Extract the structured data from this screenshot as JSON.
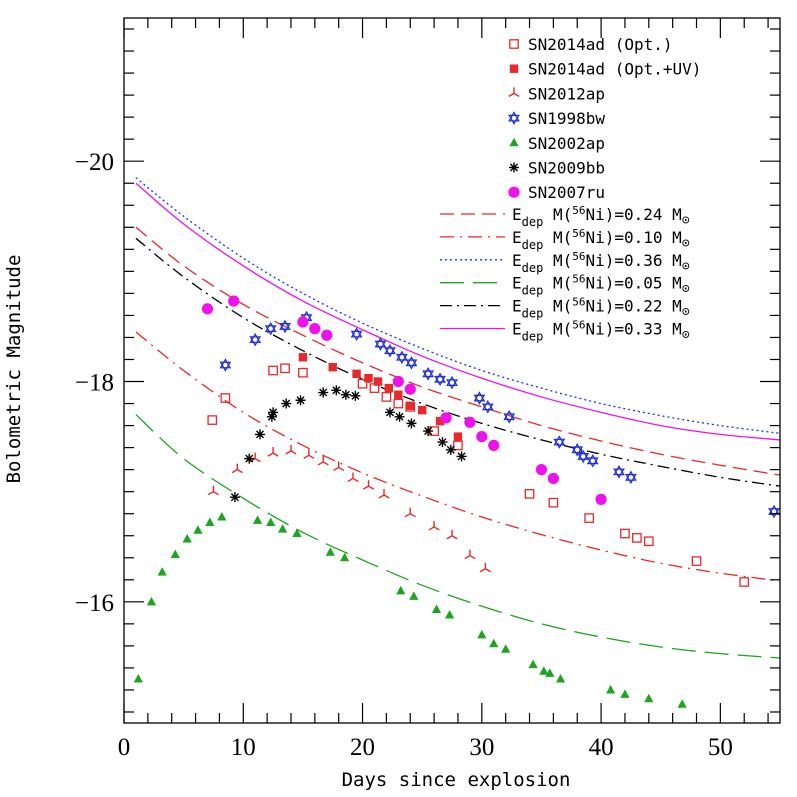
{
  "chart_data": {
    "type": "scatter",
    "xlabel": "Days since explosion",
    "ylabel": "Bolometric Magnitude",
    "xlim": [
      0,
      55
    ],
    "ylim": [
      -14.9,
      -21.3
    ],
    "x_ticks": [
      0,
      10,
      20,
      30,
      40,
      50
    ],
    "y_ticks": [
      -16,
      -18,
      -20
    ],
    "y_tick_labels": [
      "−16",
      "−18",
      "−20"
    ],
    "grid": false,
    "legend_position": "top-right",
    "series": [
      {
        "name": "SN2014ad (Opt.)",
        "marker": "open-square",
        "color": "#e8282b",
        "x": [
          7.4,
          8.5,
          12.5,
          13.5,
          15.0,
          20.0,
          21.0,
          22.0,
          23.0,
          24.0,
          26.0,
          28.0,
          34.0,
          36.0,
          39.0,
          42.0,
          43.0,
          44.0,
          48.0,
          52.0
        ],
        "y": [
          -17.65,
          -17.85,
          -18.1,
          -18.12,
          -18.08,
          -17.98,
          -17.94,
          -17.86,
          -17.8,
          -17.77,
          -17.55,
          -17.42,
          -16.98,
          -16.9,
          -16.76,
          -16.62,
          -16.58,
          -16.55,
          -16.37,
          -16.18
        ]
      },
      {
        "name": "SN2014ad (Opt.+UV)",
        "marker": "filled-square",
        "color": "#e8282b",
        "x": [
          15.0,
          17.5,
          19.5,
          20.5,
          21.3,
          22.2,
          23.0,
          24.0,
          25.0,
          26.5,
          28.0
        ],
        "y": [
          -18.22,
          -18.13,
          -18.07,
          -18.03,
          -18.0,
          -17.94,
          -17.88,
          -17.78,
          -17.74,
          -17.64,
          -17.5
        ]
      },
      {
        "name": "SN2012ap",
        "marker": "tripod",
        "color": "#e8282b",
        "x": [
          7.5,
          9.5,
          11.0,
          12.5,
          14.0,
          15.5,
          16.7,
          18.0,
          19.2,
          20.5,
          21.8,
          24.0,
          26.0,
          27.5,
          29.0,
          30.3
        ],
        "y": [
          -17.0,
          -17.2,
          -17.3,
          -17.35,
          -17.37,
          -17.33,
          -17.27,
          -17.22,
          -17.12,
          -17.05,
          -16.97,
          -16.8,
          -16.68,
          -16.6,
          -16.42,
          -16.3
        ]
      },
      {
        "name": "SN1998bw",
        "marker": "star-of-david",
        "color": "#1f31d8",
        "x": [
          8.5,
          11.0,
          12.3,
          13.5,
          15.3,
          19.5,
          21.5,
          22.3,
          23.3,
          24.1,
          25.5,
          26.5,
          27.5,
          29.8,
          30.5,
          32.3,
          36.5,
          38.0,
          38.5,
          39.3,
          41.5,
          42.5,
          54.5
        ],
        "y": [
          -18.15,
          -18.38,
          -18.48,
          -18.5,
          -18.58,
          -18.43,
          -18.34,
          -18.28,
          -18.22,
          -18.17,
          -18.07,
          -18.02,
          -17.99,
          -17.85,
          -17.77,
          -17.68,
          -17.45,
          -17.38,
          -17.32,
          -17.28,
          -17.18,
          -17.13,
          -16.82
        ]
      },
      {
        "name": "SN2002ap",
        "marker": "filled-triangle",
        "color": "#1aa61e",
        "x": [
          1.2,
          2.3,
          3.2,
          4.3,
          5.3,
          6.2,
          7.2,
          8.2,
          11.2,
          12.3,
          13.3,
          14.5,
          17.3,
          18.5,
          23.2,
          24.3,
          26.2,
          27.3,
          30.0,
          31.0,
          32.0,
          34.3,
          35.2,
          35.7,
          36.6,
          40.8,
          42.0,
          44.0,
          46.8
        ],
        "y": [
          -15.3,
          -16.0,
          -16.27,
          -16.43,
          -16.57,
          -16.65,
          -16.72,
          -16.77,
          -16.74,
          -16.72,
          -16.66,
          -16.62,
          -16.45,
          -16.4,
          -16.1,
          -16.05,
          -15.93,
          -15.88,
          -15.7,
          -15.62,
          -15.57,
          -15.43,
          -15.37,
          -15.35,
          -15.3,
          -15.2,
          -15.16,
          -15.12,
          -15.07
        ]
      },
      {
        "name": "SN2009bb",
        "marker": "asterisk",
        "color": "#000000",
        "x": [
          9.3,
          10.5,
          11.4,
          12.4,
          12.5,
          13.6,
          14.8,
          16.7,
          17.8,
          18.6,
          19.4,
          22.3,
          23.1,
          24.1,
          25.5,
          26.7,
          27.4,
          28.3
        ],
        "y": [
          -16.95,
          -17.3,
          -17.52,
          -17.68,
          -17.72,
          -17.8,
          -17.83,
          -17.9,
          -17.92,
          -17.88,
          -17.87,
          -17.72,
          -17.68,
          -17.62,
          -17.55,
          -17.45,
          -17.38,
          -17.32
        ]
      },
      {
        "name": "SN2007ru",
        "marker": "filled-circle",
        "color": "#ee11ee",
        "x": [
          7.0,
          9.2,
          15.0,
          16.0,
          17.0,
          23.0,
          24.0,
          27.0,
          29.0,
          30.0,
          31.0,
          35.0,
          36.0,
          40.0
        ],
        "y": [
          -18.66,
          -18.73,
          -18.54,
          -18.48,
          -18.42,
          -18.0,
          -17.93,
          -17.67,
          -17.63,
          -17.5,
          -17.42,
          -17.2,
          -17.12,
          -16.93
        ]
      }
    ],
    "models": [
      {
        "name": "M(56Ni)=0.24",
        "label_parts": [
          "E",
          "dep",
          "M(",
          "56",
          "Ni)=0.24 M",
          "⊙"
        ],
        "style": "dashed",
        "color": "#e8282b",
        "x": [
          1,
          5,
          10,
          15,
          20,
          25,
          30,
          35,
          40,
          45,
          50,
          55
        ],
        "y": [
          -19.4,
          -19.05,
          -18.7,
          -18.42,
          -18.17,
          -17.95,
          -17.77,
          -17.6,
          -17.46,
          -17.34,
          -17.24,
          -17.15
        ]
      },
      {
        "name": "M(56Ni)=0.10",
        "label_parts": [
          "E",
          "dep",
          "M(",
          "56",
          "Ni)=0.10 M",
          "⊙"
        ],
        "style": "dash-dot",
        "color": "#e8282b",
        "x": [
          1,
          5,
          10,
          15,
          20,
          25,
          30,
          35,
          40,
          45,
          50,
          55
        ],
        "y": [
          -18.45,
          -18.1,
          -17.72,
          -17.42,
          -17.17,
          -16.96,
          -16.77,
          -16.61,
          -16.47,
          -16.35,
          -16.26,
          -16.19
        ]
      },
      {
        "name": "M(56Ni)=0.36",
        "label_parts": [
          "E",
          "dep",
          "M(",
          "56",
          "Ni)=0.36 M",
          "⊙"
        ],
        "style": "dotted",
        "color": "#1f31d8",
        "x": [
          1,
          5,
          10,
          15,
          20,
          25,
          30,
          35,
          40,
          45,
          50,
          55
        ],
        "y": [
          -19.85,
          -19.5,
          -19.12,
          -18.8,
          -18.53,
          -18.3,
          -18.1,
          -17.94,
          -17.8,
          -17.69,
          -17.6,
          -17.53
        ]
      },
      {
        "name": "M(56Ni)=0.05",
        "label_parts": [
          "E",
          "dep",
          "M(",
          "56",
          "Ni)=0.05 M",
          "⊙"
        ],
        "style": "long-dashed",
        "color": "#1aa61e",
        "x": [
          1,
          5,
          10,
          15,
          20,
          25,
          30,
          35,
          40,
          45,
          50,
          55
        ],
        "y": [
          -17.7,
          -17.3,
          -16.94,
          -16.63,
          -16.38,
          -16.15,
          -15.96,
          -15.8,
          -15.68,
          -15.59,
          -15.53,
          -15.49
        ]
      },
      {
        "name": "M(56Ni)=0.22",
        "label_parts": [
          "E",
          "dep",
          "M(",
          "56",
          "Ni)=0.22 M",
          "⊙"
        ],
        "style": "dash-dot-black",
        "color": "#000000",
        "x": [
          1,
          5,
          10,
          15,
          20,
          25,
          30,
          35,
          40,
          45,
          50,
          55
        ],
        "y": [
          -19.3,
          -18.95,
          -18.58,
          -18.28,
          -18.02,
          -17.8,
          -17.62,
          -17.47,
          -17.34,
          -17.23,
          -17.13,
          -17.05
        ]
      },
      {
        "name": "M(56Ni)=0.33",
        "label_parts": [
          "E",
          "dep",
          "M(",
          "56",
          "Ni)=0.33 M",
          "⊙"
        ],
        "style": "solid",
        "color": "#ee11ee",
        "x": [
          1,
          5,
          10,
          15,
          20,
          25,
          30,
          35,
          40,
          45,
          50,
          55
        ],
        "y": [
          -19.8,
          -19.43,
          -19.05,
          -18.73,
          -18.47,
          -18.23,
          -18.03,
          -17.86,
          -17.72,
          -17.6,
          -17.52,
          -17.47
        ]
      }
    ]
  }
}
